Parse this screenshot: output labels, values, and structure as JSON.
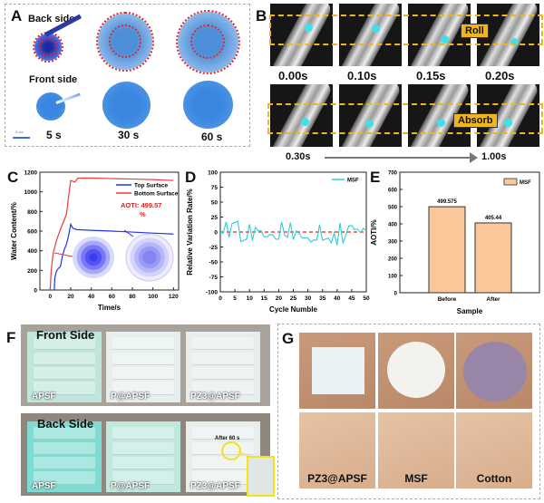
{
  "panels": {
    "A": {
      "label": "A",
      "back_side": "Back side",
      "front_side": "Front side",
      "scale_bar": "2 cm",
      "times": [
        "5 s",
        "30 s",
        "60 s"
      ]
    },
    "B": {
      "label": "B",
      "row1_times": [
        "0.00s",
        "0.10s",
        "0.15s",
        "0.20s"
      ],
      "roll_tag": "Roll",
      "absorb_tag": "Absorb",
      "start_time": "0.30s",
      "end_time": "1.00s"
    },
    "C": {
      "label": "C"
    },
    "D": {
      "label": "D"
    },
    "E": {
      "label": "E"
    },
    "F": {
      "label": "F",
      "front_title": "Front Side",
      "back_title": "Back Side",
      "samples": [
        "APSF",
        "P@APSF",
        "PZ3@APSF"
      ],
      "annotation": "After 60 s"
    },
    "G": {
      "label": "G",
      "samples": [
        "PZ3@APSF",
        "MSF",
        "Cotton"
      ]
    }
  },
  "chart_data": [
    {
      "id": "C",
      "type": "line",
      "title": "",
      "xlabel": "Time/s",
      "ylabel": "Water Content/%",
      "xlim": [
        -10,
        125
      ],
      "ylim": [
        0,
        1200
      ],
      "xticks": [
        0,
        20,
        40,
        60,
        80,
        100,
        120
      ],
      "yticks": [
        0,
        200,
        400,
        600,
        800,
        1000,
        1200
      ],
      "legend_position": "top-right",
      "annotation": {
        "text_line1": "AOTI: 499.57",
        "text_line2": "%",
        "color": "#d62728"
      },
      "series": [
        {
          "name": "Top Surface",
          "color": "#2233ee",
          "x": [
            4,
            4.5,
            6,
            8,
            10,
            12,
            14,
            16,
            18,
            20,
            22,
            26,
            40,
            60,
            80,
            100,
            120
          ],
          "y": [
            0,
            120,
            190,
            220,
            240,
            350,
            420,
            470,
            560,
            670,
            630,
            615,
            608,
            600,
            590,
            580,
            570
          ]
        },
        {
          "name": "Bottom Surface",
          "color": "#ee3b3b",
          "x": [
            0,
            1,
            3,
            6,
            10,
            14,
            16,
            18,
            20,
            24,
            27,
            30,
            40,
            60,
            80,
            100,
            120
          ],
          "y": [
            0,
            200,
            380,
            500,
            620,
            720,
            780,
            960,
            1115,
            1100,
            1140,
            1140,
            1140,
            1135,
            1130,
            1125,
            1115
          ]
        }
      ]
    },
    {
      "id": "D",
      "type": "line",
      "title": "",
      "xlabel": "Cycle Numble",
      "ylabel": "Relative Variation Rate/%",
      "xlim": [
        0,
        50
      ],
      "ylim": [
        -100,
        100
      ],
      "xticks": [
        0,
        5,
        10,
        15,
        20,
        25,
        30,
        35,
        40,
        45,
        50
      ],
      "yticks": [
        -100,
        -75,
        -50,
        -25,
        0,
        25,
        50,
        75,
        100
      ],
      "legend_position": "top-right",
      "reference_line": {
        "y": 0,
        "color": "#ee2222",
        "style": "dashed"
      },
      "series": [
        {
          "name": "MSF",
          "color": "#2ccfd6",
          "x": [
            0,
            1,
            2,
            3,
            4,
            5,
            6,
            7,
            8,
            9,
            10,
            11,
            12,
            13,
            14,
            15,
            16,
            17,
            18,
            19,
            20,
            21,
            22,
            23,
            24,
            25,
            26,
            27,
            28,
            29,
            30,
            31,
            32,
            33,
            34,
            35,
            36,
            37,
            38,
            39,
            40,
            41,
            42,
            43,
            44,
            45,
            46,
            47,
            48,
            49,
            50
          ],
          "y": [
            0,
            -2,
            17,
            -9,
            14,
            16,
            18,
            -16,
            -14,
            -12,
            13,
            -14,
            8,
            2,
            2,
            -8,
            -8,
            -4,
            -5,
            -12,
            -12,
            17,
            -5,
            -9,
            16,
            -13,
            2,
            -2,
            -10,
            -10,
            -10,
            -17,
            -13,
            -14,
            12,
            -14,
            -12,
            -10,
            -18,
            -2,
            -22,
            15,
            -18,
            -5,
            10,
            11,
            4,
            5,
            -1,
            6,
            2
          ]
        }
      ]
    },
    {
      "id": "E",
      "type": "bar",
      "title": "",
      "xlabel": "Sample",
      "ylabel": "AOTI/%",
      "ylim": [
        0,
        700
      ],
      "yticks": [
        0,
        100,
        200,
        300,
        400,
        500,
        600,
        700
      ],
      "categories": [
        "Before",
        "After"
      ],
      "legend_position": "top-right",
      "series": [
        {
          "name": "MSF",
          "color": "#f9c79a",
          "values": [
            499.575,
            405.44
          ],
          "data_labels": [
            "499.575",
            "405.44"
          ]
        }
      ]
    }
  ]
}
